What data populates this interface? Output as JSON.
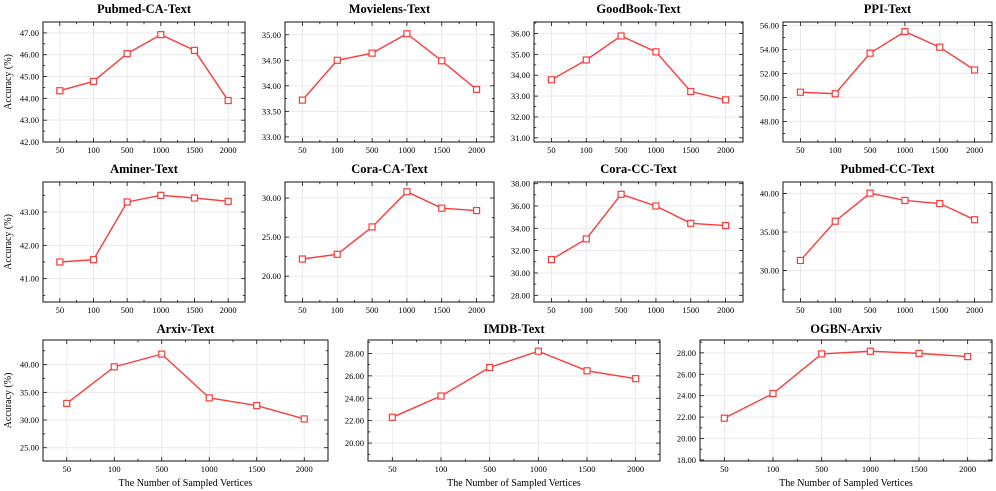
{
  "figure": {
    "x_axis_label": "The Number of Sampled Vertices",
    "y_axis_label": "Accuracy (%)",
    "x_categories": [
      "50",
      "100",
      "500",
      "1000",
      "1500",
      "2000"
    ],
    "colors": {
      "line": "#fa3c3c",
      "marker_fill": "#ffffff",
      "grid": "#e9e9e9",
      "spine": "#111111",
      "text": "#000000"
    }
  },
  "chart_data": [
    {
      "type": "line",
      "title": "Pubmed-CA-Text",
      "categories": [
        "50",
        "100",
        "500",
        "1000",
        "1500",
        "2000"
      ],
      "values": [
        44.35,
        44.78,
        46.05,
        46.92,
        46.2,
        43.9
      ],
      "yticks": [
        "42.00",
        "43.00",
        "44.00",
        "45.00",
        "46.00",
        "47.00"
      ],
      "ylim": [
        42.0,
        47.5
      ],
      "ylabel": "Accuracy (%)",
      "xlabel": "",
      "grid": true
    },
    {
      "type": "line",
      "title": "Movielens-Text",
      "categories": [
        "50",
        "100",
        "500",
        "1000",
        "1500",
        "2000"
      ],
      "values": [
        33.72,
        34.5,
        34.64,
        35.02,
        34.49,
        33.93
      ],
      "yticks": [
        "33.00",
        "33.50",
        "34.00",
        "34.50",
        "35.00"
      ],
      "ylim": [
        32.9,
        35.25
      ],
      "ylabel": "",
      "xlabel": "",
      "grid": true
    },
    {
      "type": "line",
      "title": "GoodBook-Text",
      "categories": [
        "50",
        "100",
        "500",
        "1000",
        "1500",
        "2000"
      ],
      "values": [
        33.78,
        34.73,
        35.88,
        35.12,
        33.22,
        32.82
      ],
      "yticks": [
        "31.00",
        "32.00",
        "33.00",
        "34.00",
        "35.00",
        "36.00"
      ],
      "ylim": [
        30.8,
        36.55
      ],
      "ylabel": "",
      "xlabel": "",
      "grid": true
    },
    {
      "type": "line",
      "title": "PPI-Text",
      "categories": [
        "50",
        "100",
        "500",
        "1000",
        "1500",
        "2000"
      ],
      "values": [
        50.45,
        50.32,
        53.7,
        55.5,
        54.2,
        52.3
      ],
      "yticks": [
        "48.00",
        "50.00",
        "52.00",
        "54.00",
        "56.00"
      ],
      "ylim": [
        46.3,
        56.3
      ],
      "ylabel": "",
      "xlabel": "",
      "grid": true
    },
    {
      "type": "line",
      "title": "Aminer-Text",
      "categories": [
        "50",
        "100",
        "500",
        "1000",
        "1500",
        "2000"
      ],
      "values": [
        41.5,
        41.57,
        43.3,
        43.5,
        43.42,
        43.32
      ],
      "yticks": [
        "41.00",
        "42.00",
        "43.00"
      ],
      "ylim": [
        40.3,
        43.9
      ],
      "ylabel": "Accuracy (%)",
      "xlabel": "",
      "grid": true
    },
    {
      "type": "line",
      "title": "Cora-CA-Text",
      "categories": [
        "50",
        "100",
        "500",
        "1000",
        "1500",
        "2000"
      ],
      "values": [
        22.2,
        22.8,
        26.3,
        30.8,
        28.7,
        28.4
      ],
      "yticks": [
        "20.00",
        "25.00",
        "30.00"
      ],
      "ylim": [
        16.7,
        32.05
      ],
      "ylabel": "",
      "xlabel": "",
      "grid": true
    },
    {
      "type": "line",
      "title": "Cora-CC-Text",
      "categories": [
        "50",
        "100",
        "500",
        "1000",
        "1500",
        "2000"
      ],
      "values": [
        31.2,
        33.05,
        37.05,
        36.0,
        34.45,
        34.25
      ],
      "yticks": [
        "28.00",
        "30.00",
        "32.00",
        "34.00",
        "36.00",
        "38.00"
      ],
      "ylim": [
        27.4,
        38.15
      ],
      "ylabel": "",
      "xlabel": "",
      "grid": true
    },
    {
      "type": "line",
      "title": "Pubmed-CC-Text",
      "categories": [
        "50",
        "100",
        "500",
        "1000",
        "1500",
        "2000"
      ],
      "values": [
        31.3,
        36.4,
        40.05,
        39.1,
        38.7,
        36.6
      ],
      "yticks": [
        "30.00",
        "35.00",
        "40.00"
      ],
      "ylim": [
        25.9,
        41.5
      ],
      "ylabel": "",
      "xlabel": "",
      "grid": true
    },
    {
      "type": "line",
      "title": "Arxiv-Text",
      "categories": [
        "50",
        "100",
        "500",
        "1000",
        "1500",
        "2000"
      ],
      "values": [
        33.0,
        39.6,
        41.9,
        34.0,
        32.6,
        30.2
      ],
      "yticks": [
        "25.00",
        "30.00",
        "35.00",
        "40.00"
      ],
      "ylim": [
        22.6,
        44.45
      ],
      "ylabel": "Accuracy (%)",
      "xlabel": "The Number of Sampled Vertices",
      "grid": true
    },
    {
      "type": "line",
      "title": "IMDB-Text",
      "categories": [
        "50",
        "100",
        "500",
        "1000",
        "1500",
        "2000"
      ],
      "values": [
        22.3,
        24.2,
        26.75,
        28.2,
        26.45,
        25.75
      ],
      "yticks": [
        "20.00",
        "22.00",
        "24.00",
        "26.00",
        "28.00"
      ],
      "ylim": [
        18.4,
        29.2
      ],
      "ylabel": "",
      "xlabel": "The Number of Sampled Vertices",
      "grid": true
    },
    {
      "type": "line",
      "title": "OGBN-Arxiv",
      "categories": [
        "50",
        "100",
        "500",
        "1000",
        "1500",
        "2000"
      ],
      "values": [
        21.9,
        24.2,
        27.9,
        28.15,
        27.95,
        27.65
      ],
      "yticks": [
        "18.00",
        "20.00",
        "22.00",
        "24.00",
        "26.00",
        "28.00"
      ],
      "ylim": [
        17.9,
        29.2
      ],
      "ylabel": "",
      "xlabel": "The Number of Sampled Vertices",
      "grid": true
    }
  ]
}
